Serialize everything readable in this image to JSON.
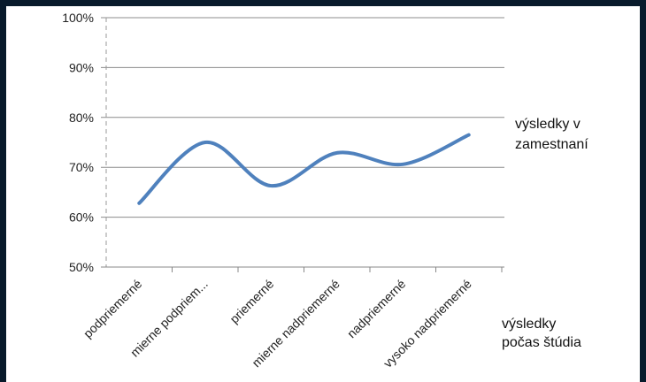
{
  "chart_data": {
    "type": "line",
    "categories": [
      "podpriemerné",
      "mierne podpriem...",
      "priemerné",
      "mierne nadpriemerné",
      "nadpriemerné",
      "vysoko nadpriemerné"
    ],
    "series": [
      {
        "name": "výsledky v zamestnaní",
        "values": [
          62.8,
          75,
          66.3,
          72.9,
          70.6,
          76.5
        ],
        "color": "#4f81bd"
      }
    ],
    "ylim": [
      0.5,
      1.0
    ],
    "yticks": [
      "50%",
      "60%",
      "70%",
      "80%",
      "90%",
      "100%"
    ],
    "legend_lines": [
      "výsledky v",
      "zamestnaní"
    ],
    "xlabel_lines": [
      "výsledky",
      "počas štúdia"
    ],
    "grid": true,
    "legend_position": "right"
  }
}
